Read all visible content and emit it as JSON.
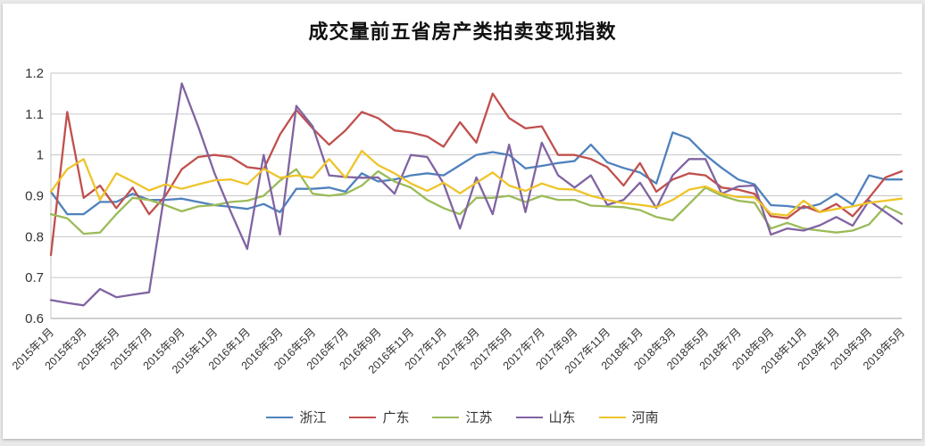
{
  "page": {
    "background_color": "#e9e9e9",
    "chart_background_color": "#ffffff"
  },
  "axis_style": {
    "gridline_color": "#c6c6c6",
    "axis_line_color": "#9c9c9c",
    "tick_label_color": "#333333"
  },
  "chart_data": {
    "type": "line",
    "title": "成交量前五省房产类拍卖变现指数",
    "xlabel": "",
    "ylabel": "",
    "ylim": [
      0.6,
      1.2
    ],
    "y_ticks": [
      "1.2",
      "1.1",
      "1",
      "0.9",
      "0.8",
      "0.7",
      "0.6"
    ],
    "grid": "horizontal",
    "legend_position": "bottom",
    "x_points_count": 53,
    "x_tick_every": 2,
    "x_tick_labels": [
      "2015年1月",
      "2015年3月",
      "2015年5月",
      "2015年7月",
      "2015年9月",
      "2015年11月",
      "2016年1月",
      "2016年3月",
      "2016年5月",
      "2016年7月",
      "2016年9月",
      "2016年11月",
      "2017年1月",
      "2017年3月",
      "2017年5月",
      "2017年7月",
      "2017年9月",
      "2017年11月",
      "2018年1月",
      "2018年3月",
      "2018年5月",
      "2018年7月",
      "2018年9月",
      "2018年11月",
      "2019年1月",
      "2019年3月",
      "2019年5月"
    ],
    "series": [
      {
        "name": "浙江",
        "color": "#4F81BD",
        "values": [
          0.91,
          0.855,
          0.855,
          0.885,
          0.885,
          0.905,
          0.89,
          0.89,
          0.893,
          0.885,
          0.877,
          0.873,
          0.868,
          0.88,
          0.86,
          0.917,
          0.917,
          0.92,
          0.91,
          0.955,
          0.935,
          0.94,
          0.95,
          0.955,
          0.95,
          0.975,
          1.0,
          1.007,
          1.0,
          0.967,
          0.973,
          0.98,
          0.985,
          1.025,
          0.982,
          0.968,
          0.957,
          0.93,
          1.055,
          1.04,
          1.0,
          0.968,
          0.94,
          0.928,
          0.877,
          0.875,
          0.87,
          0.88,
          0.905,
          0.878,
          0.95,
          0.94,
          0.94
        ]
      },
      {
        "name": "广东",
        "color": "#C0504D",
        "values": [
          0.755,
          1.105,
          0.895,
          0.925,
          0.87,
          0.92,
          0.855,
          0.9,
          0.965,
          0.995,
          1.0,
          0.995,
          0.97,
          0.965,
          1.05,
          1.11,
          1.065,
          1.025,
          1.06,
          1.105,
          1.09,
          1.06,
          1.055,
          1.045,
          1.02,
          1.08,
          1.03,
          1.15,
          1.09,
          1.065,
          1.07,
          1.0,
          1.0,
          0.99,
          0.97,
          0.925,
          0.98,
          0.91,
          0.94,
          0.955,
          0.95,
          0.92,
          0.915,
          0.905,
          0.85,
          0.845,
          0.875,
          0.86,
          0.88,
          0.85,
          0.895,
          0.945,
          0.96
        ]
      },
      {
        "name": "江苏",
        "color": "#9BBB59",
        "values": [
          0.855,
          0.845,
          0.807,
          0.81,
          0.855,
          0.895,
          0.89,
          0.877,
          0.862,
          0.874,
          0.877,
          0.885,
          0.888,
          0.9,
          0.937,
          0.965,
          0.905,
          0.9,
          0.905,
          0.925,
          0.96,
          0.935,
          0.92,
          0.89,
          0.87,
          0.855,
          0.895,
          0.895,
          0.9,
          0.885,
          0.9,
          0.89,
          0.89,
          0.876,
          0.874,
          0.872,
          0.865,
          0.848,
          0.84,
          0.88,
          0.92,
          0.9,
          0.888,
          0.883,
          0.82,
          0.834,
          0.82,
          0.815,
          0.81,
          0.815,
          0.83,
          0.875,
          0.855
        ]
      },
      {
        "name": "山东",
        "color": "#8064A2",
        "values": [
          0.645,
          0.638,
          0.632,
          0.672,
          0.652,
          0.658,
          0.664,
          0.92,
          1.175,
          1.07,
          0.955,
          0.86,
          0.77,
          1.0,
          0.805,
          1.12,
          1.07,
          0.95,
          0.946,
          0.944,
          0.945,
          0.905,
          1.0,
          0.995,
          0.93,
          0.82,
          0.945,
          0.855,
          1.025,
          0.86,
          1.03,
          0.95,
          0.92,
          0.95,
          0.878,
          0.89,
          0.932,
          0.87,
          0.95,
          0.99,
          0.99,
          0.905,
          0.923,
          0.925,
          0.805,
          0.82,
          0.815,
          0.828,
          0.848,
          0.827,
          0.888,
          0.86,
          0.832
        ]
      },
      {
        "name": "河南",
        "color": "#EEC429",
        "values": [
          0.91,
          0.965,
          0.99,
          0.89,
          0.955,
          0.935,
          0.913,
          0.928,
          0.917,
          0.928,
          0.938,
          0.94,
          0.928,
          0.966,
          0.944,
          0.95,
          0.944,
          0.99,
          0.944,
          1.01,
          0.975,
          0.955,
          0.93,
          0.912,
          0.932,
          0.906,
          0.932,
          0.957,
          0.925,
          0.912,
          0.93,
          0.917,
          0.915,
          0.9,
          0.89,
          0.882,
          0.878,
          0.872,
          0.89,
          0.915,
          0.923,
          0.905,
          0.897,
          0.896,
          0.856,
          0.852,
          0.888,
          0.86,
          0.868,
          0.874,
          0.883,
          0.888,
          0.893
        ]
      }
    ]
  }
}
